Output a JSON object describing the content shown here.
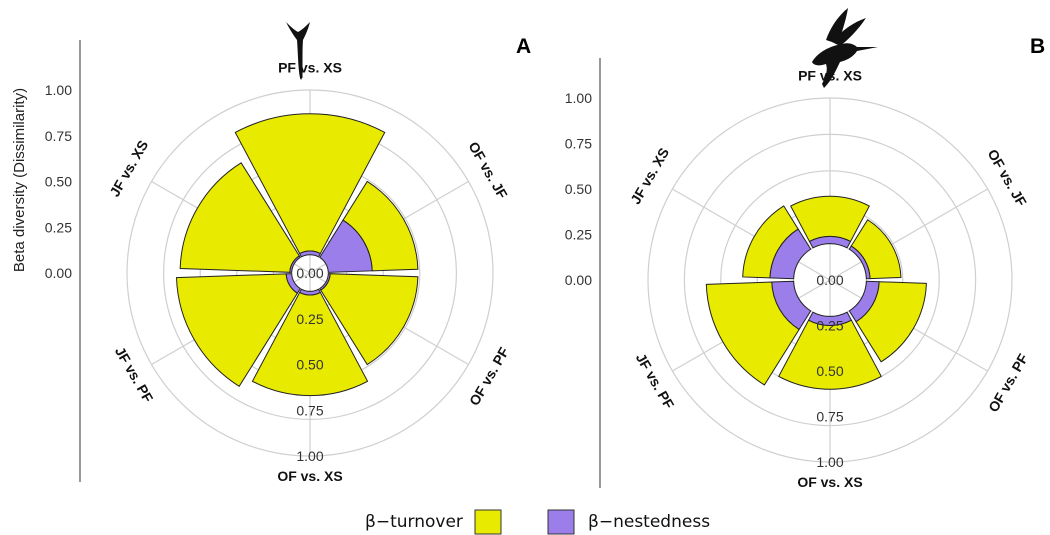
{
  "figure": {
    "legend": [
      {
        "label": "β−turnover",
        "color": "#e8ea00"
      },
      {
        "label": "β−nestedness",
        "color": "#9b7eea"
      }
    ]
  },
  "chart_data": [
    {
      "type": "polar-bar",
      "panel_label": "A",
      "icon": "flower-icon",
      "ylabel": "Beta diversity (Dissimilarity)",
      "ylim": [
        0,
        1
      ],
      "radial_ticks": [
        "0.00",
        "0.25",
        "0.50",
        "0.75",
        "1.00"
      ],
      "categories": [
        "OF vs. JF",
        "OF vs. PF",
        "OF vs. XS",
        "JF vs. PF",
        "JF vs. XS",
        "PF vs. XS"
      ],
      "series": [
        {
          "name": "β−turnover",
          "values": [
            0.25,
            0.48,
            0.55,
            0.6,
            0.6,
            0.75
          ]
        },
        {
          "name": "β−nestedness",
          "values": [
            0.24,
            0.01,
            0.02,
            0.03,
            0.01,
            0.02
          ]
        }
      ],
      "nestedness_inner_radius": 0.1,
      "grid": true
    },
    {
      "type": "polar-bar",
      "panel_label": "B",
      "icon": "hummingbird-icon",
      "ylim": [
        0,
        1
      ],
      "radial_ticks": [
        "0.00",
        "0.25",
        "0.50",
        "0.75",
        "1.00"
      ],
      "categories": [
        "OF vs. JF",
        "OF vs. PF",
        "OF vs. XS",
        "JF vs. PF",
        "JF vs. XS",
        "PF vs. XS"
      ],
      "series": [
        {
          "name": "β−turnover",
          "values": [
            0.17,
            0.26,
            0.35,
            0.36,
            0.15,
            0.22
          ]
        },
        {
          "name": "β−nestedness",
          "values": [
            0.02,
            0.07,
            0.05,
            0.12,
            0.13,
            0.04
          ]
        }
      ],
      "nestedness_inner_radius": 0.2,
      "grid": true
    }
  ]
}
